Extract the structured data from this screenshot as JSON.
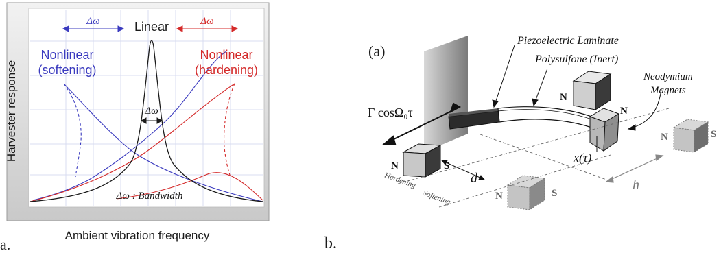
{
  "panel_a": {
    "tag": "a.",
    "ylabel": "Harvester response",
    "xlabel": "Ambient vibration frequency",
    "linear_label": "Linear",
    "softening_label_1": "Nonlinear",
    "softening_label_2": "(softening)",
    "hardening_label_1": "Nonlinear",
    "hardening_label_2": "(hardening)",
    "delta_left": "Δω",
    "delta_right": "Δω",
    "delta_center": "Δω",
    "bandwidth_label": "Δω : Bandwidth",
    "colors": {
      "linear": "#1a1a1a",
      "softening": "#3b3bbf",
      "hardening": "#d42a2a"
    }
  },
  "panel_b": {
    "tag": "b.",
    "subtitle": "(a)",
    "forcing_label": "Γ cosΩ₀τ",
    "piezo_label": "Piezoelectric Laminate",
    "polysulfone_label": "Polysulfone (Inert)",
    "magnets_label_1": "Neodymium",
    "magnets_label_2": "Magnets",
    "displacement_label": "x(τ)",
    "d_label": "d",
    "h_label": "h",
    "hardening_label": "Hardening",
    "softening_label": "Softening",
    "magnet_pole_n": "N",
    "magnet_pole_s": "S"
  }
}
